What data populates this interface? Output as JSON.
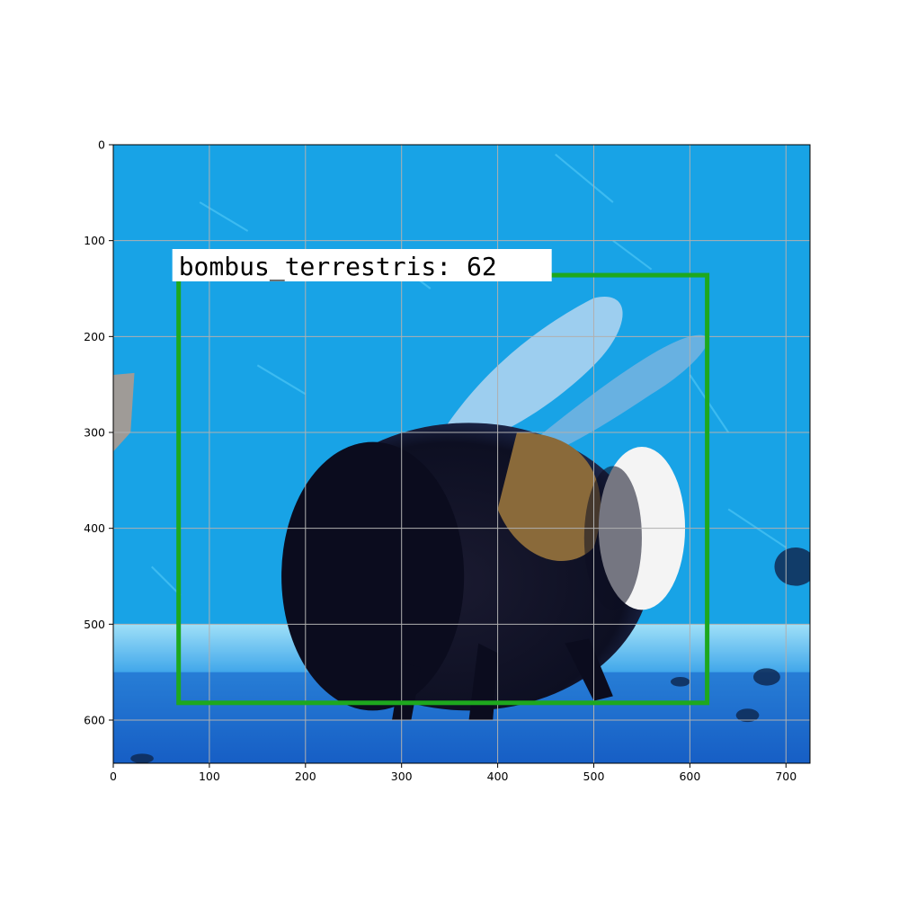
{
  "image": {
    "width": 725,
    "height": 645,
    "colors": {
      "background_blue": "#18a3e6",
      "ledge_light_blue": "#7fd3f4",
      "ledge_deep_blue": "#1763c8",
      "bee_dark": "#0e1024",
      "bee_band": "#8a6a3a",
      "bee_tail_white": "#f4f4f4"
    }
  },
  "axes": {
    "x_ticks": [
      0,
      100,
      200,
      300,
      400,
      500,
      600,
      700
    ],
    "y_ticks": [
      0,
      100,
      200,
      300,
      400,
      500,
      600
    ],
    "grid": true,
    "grid_color": "#b0b0b0"
  },
  "detection": {
    "label": "bombus_terrestris: 62",
    "box": {
      "x0": 68,
      "y0": 136,
      "x1": 618,
      "y1": 582
    },
    "box_color": "#1ea81e",
    "label_bg": "#ffffff"
  }
}
